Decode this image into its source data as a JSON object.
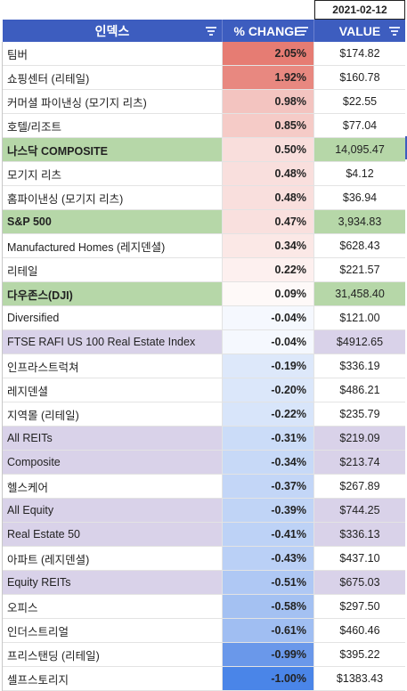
{
  "date": "2021-02-12",
  "header": {
    "name_label": "인덱스",
    "change_label": "% CHANGE",
    "value_label": "VALUE"
  },
  "rows": [
    {
      "name": "팀버",
      "change": "2.05%",
      "value": "$174.82",
      "group": "none",
      "change_bg": "#e67c73"
    },
    {
      "name": "쇼핑센터 (리테일)",
      "change": "1.92%",
      "value": "$160.78",
      "group": "none",
      "change_bg": "#e88880"
    },
    {
      "name": "커머셜 파이낸싱 (모기지 리츠)",
      "change": "0.98%",
      "value": "$22.55",
      "group": "none",
      "change_bg": "#f3c4c0"
    },
    {
      "name": "호텔/리조트",
      "change": "0.85%",
      "value": "$77.04",
      "group": "none",
      "change_bg": "#f5cbc7"
    },
    {
      "name": "나스닥 COMPOSITE",
      "change": "0.50%",
      "value": "14,095.47",
      "group": "green",
      "change_bg": "#f9dedc"
    },
    {
      "name": "모기지 리츠",
      "change": "0.48%",
      "value": "$4.12",
      "group": "none",
      "change_bg": "#f9dfdd"
    },
    {
      "name": "홈파이낸싱 (모기지 리츠)",
      "change": "0.48%",
      "value": "$36.94",
      "group": "none",
      "change_bg": "#f9dfdd"
    },
    {
      "name": "S&P 500",
      "change": "0.47%",
      "value": "3,934.83",
      "group": "green",
      "change_bg": "#f9e0de"
    },
    {
      "name": "Manufactured Homes (레지덴셜)",
      "change": "0.34%",
      "value": "$628.43",
      "group": "none",
      "change_bg": "#fbe8e6"
    },
    {
      "name": "리테일",
      "change": "0.22%",
      "value": "$221.57",
      "group": "none",
      "change_bg": "#fdf0ef"
    },
    {
      "name": "다우존스(DJI)",
      "change": "0.09%",
      "value": "31,458.40",
      "group": "green",
      "change_bg": "#fef9f8"
    },
    {
      "name": "Diversified",
      "change": "-0.04%",
      "value": "$121.00",
      "group": "none",
      "change_bg": "#f5f8fe"
    },
    {
      "name": "FTSE RAFI US 100 Real Estate Index",
      "change": "-0.04%",
      "value": "$4912.65",
      "group": "purple",
      "change_bg": "#f5f8fe"
    },
    {
      "name": "인프라스트럭쳐",
      "change": "-0.19%",
      "value": "$336.19",
      "group": "none",
      "change_bg": "#dde8fa"
    },
    {
      "name": "레지덴셜",
      "change": "-0.20%",
      "value": "$486.21",
      "group": "none",
      "change_bg": "#dbe7fa"
    },
    {
      "name": "지역몰 (리테일)",
      "change": "-0.22%",
      "value": "$235.79",
      "group": "none",
      "change_bg": "#d8e5fa"
    },
    {
      "name": "All REITs",
      "change": "-0.31%",
      "value": "$219.09",
      "group": "purple",
      "change_bg": "#cbdcf8"
    },
    {
      "name": "Composite",
      "change": "-0.34%",
      "value": "$213.74",
      "group": "purple",
      "change_bg": "#c7d9f7"
    },
    {
      "name": "헬스케어",
      "change": "-0.37%",
      "value": "$267.89",
      "group": "none",
      "change_bg": "#c3d6f7"
    },
    {
      "name": "All Equity",
      "change": "-0.39%",
      "value": "$744.25",
      "group": "purple",
      "change_bg": "#c0d4f6"
    },
    {
      "name": "Real Estate 50",
      "change": "-0.41%",
      "value": "$336.13",
      "group": "purple",
      "change_bg": "#bdd2f6"
    },
    {
      "name": "아파트 (레지덴셜)",
      "change": "-0.43%",
      "value": "$437.10",
      "group": "none",
      "change_bg": "#bad0f6"
    },
    {
      "name": "Equity REITs",
      "change": "-0.51%",
      "value": "$675.03",
      "group": "purple",
      "change_bg": "#afc8f4"
    },
    {
      "name": "오피스",
      "change": "-0.58%",
      "value": "$297.50",
      "group": "none",
      "change_bg": "#a4c1f2"
    },
    {
      "name": "인더스트리얼",
      "change": "-0.61%",
      "value": "$460.46",
      "group": "none",
      "change_bg": "#a0bef2"
    },
    {
      "name": "프리스탠딩 (리테일)",
      "change": "-0.99%",
      "value": "$395.22",
      "group": "none",
      "change_bg": "#6a98ea"
    },
    {
      "name": "셀프스토리지",
      "change": "-1.00%",
      "value": "$1383.43",
      "group": "none",
      "change_bg": "#4a85e8"
    }
  ]
}
